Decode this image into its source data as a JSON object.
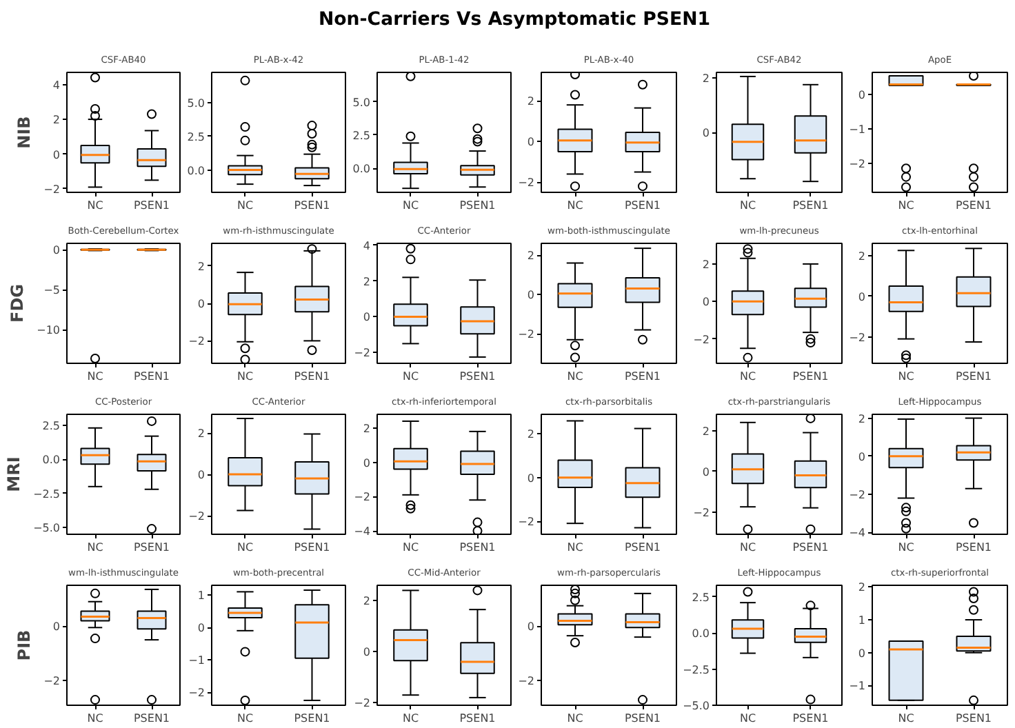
{
  "chart_data": [
    {
      "type": "other",
      "title": "Non-Carriers Vs Asymptomatic PSEN1"
    },
    {
      "type": "box",
      "title": "CSF-AB40",
      "ylabel": "NIB",
      "categories": [
        "NC",
        "PSEN1"
      ],
      "ylim": [
        -2.2,
        4.7
      ],
      "yticks": [
        -2,
        0,
        2,
        4
      ],
      "boxes": [
        {
          "low": -1.9,
          "q1": -0.5,
          "median": -0.05,
          "q3": 0.5,
          "high": 2.0,
          "outliers": [
            2.2,
            2.6,
            4.4
          ]
        },
        {
          "low": -1.5,
          "q1": -0.7,
          "median": -0.35,
          "q3": 0.3,
          "high": 1.35,
          "outliers": [
            2.3
          ]
        }
      ]
    },
    {
      "type": "box",
      "title": "PL-AB-x-42",
      "categories": [
        "NC",
        "PSEN1"
      ],
      "ylim": [
        -1.6,
        7.2
      ],
      "yticks": [
        {
          "value": 0,
          "label": "0.0"
        },
        {
          "value": 2.5,
          "label": "2.5"
        },
        {
          "value": 5,
          "label": "5.0"
        }
      ],
      "boxes": [
        {
          "low": -1.0,
          "q1": -0.3,
          "median": 0.05,
          "q3": 0.35,
          "high": 1.1,
          "outliers": [
            2.2,
            3.2,
            6.6
          ]
        },
        {
          "low": -1.1,
          "q1": -0.6,
          "median": -0.25,
          "q3": 0.2,
          "high": 1.2,
          "outliers": [
            1.7,
            1.9,
            2.7,
            3.3
          ]
        }
      ]
    },
    {
      "type": "box",
      "title": "PL-AB-1-42",
      "categories": [
        "NC",
        "PSEN1"
      ],
      "ylim": [
        -1.8,
        7.2
      ],
      "yticks": [
        {
          "value": 0,
          "label": "0.0"
        },
        {
          "value": 2.5,
          "label": "2.5"
        },
        {
          "value": 5,
          "label": "5.0"
        }
      ],
      "boxes": [
        {
          "low": -1.5,
          "q1": -0.4,
          "median": -0.05,
          "q3": 0.45,
          "high": 1.9,
          "outliers": [
            2.4,
            6.9
          ]
        },
        {
          "low": -1.4,
          "q1": -0.5,
          "median": -0.1,
          "q3": 0.2,
          "high": 1.3,
          "outliers": [
            2.0,
            2.2,
            3.0
          ]
        }
      ]
    },
    {
      "type": "box",
      "title": "PL-AB-x-40",
      "categories": [
        "NC",
        "PSEN1"
      ],
      "ylim": [
        -2.5,
        3.4
      ],
      "yticks": [
        -2,
        0,
        2
      ],
      "boxes": [
        {
          "low": -1.6,
          "q1": -0.5,
          "median": 0.05,
          "q3": 0.6,
          "high": 1.8,
          "outliers": [
            -2.2,
            2.3,
            3.3
          ]
        },
        {
          "low": -1.5,
          "q1": -0.5,
          "median": -0.05,
          "q3": 0.45,
          "high": 1.65,
          "outliers": [
            -2.2,
            2.8
          ]
        }
      ]
    },
    {
      "type": "box",
      "title": "CSF-AB42",
      "categories": [
        "NC",
        "PSEN1"
      ],
      "ylim": [
        -2.2,
        2.2
      ],
      "yticks": [
        0,
        2
      ],
      "boxes": [
        {
          "low": -1.7,
          "q1": -1.0,
          "median": -0.35,
          "q3": 0.3,
          "high": 2.05
        },
        {
          "low": -1.8,
          "q1": -0.75,
          "median": -0.3,
          "q3": 0.6,
          "high": 1.75
        }
      ]
    },
    {
      "type": "box",
      "title": "ApoE",
      "categories": [
        "NC",
        "PSEN1"
      ],
      "ylim": [
        -2.85,
        0.65
      ],
      "yticks": [
        -2,
        -1,
        0
      ],
      "boxes": [
        {
          "low": 0.27,
          "q1": 0.27,
          "median": 0.3,
          "q3": 0.55,
          "high": 0.55,
          "outliers": [
            -2.7,
            -2.4,
            -2.15
          ]
        },
        {
          "low": 0.27,
          "q1": 0.27,
          "median": 0.3,
          "q3": 0.3,
          "high": 0.3,
          "outliers": [
            -2.7,
            -2.4,
            -2.15,
            0.55
          ]
        }
      ]
    },
    {
      "type": "box",
      "title": "Both-Cerebellum-Cortex",
      "ylabel": "FDG",
      "categories": [
        "NC",
        "PSEN1"
      ],
      "ylim": [
        -14.2,
        0.8
      ],
      "yticks": [
        -10,
        -5,
        0
      ],
      "boxes": [
        {
          "low": -0.1,
          "q1": -0.05,
          "median": 0,
          "q3": 0.05,
          "high": 0.1,
          "outliers": [
            -13.6
          ]
        },
        {
          "low": -0.1,
          "q1": -0.05,
          "median": 0,
          "q3": 0.05,
          "high": 0.1
        }
      ]
    },
    {
      "type": "box",
      "title": "wm-rh-isthmuscingulate",
      "categories": [
        "NC",
        "PSEN1"
      ],
      "ylim": [
        -3.2,
        3.2
      ],
      "yticks": [
        -2,
        0,
        2
      ],
      "boxes": [
        {
          "low": -2.05,
          "q1": -0.6,
          "median": -0.05,
          "q3": 0.55,
          "high": 1.65,
          "outliers": [
            -2.4,
            -3.0
          ]
        },
        {
          "low": -2.0,
          "q1": -0.45,
          "median": 0.2,
          "q3": 0.9,
          "high": 2.8,
          "outliers": [
            -2.5,
            2.9
          ]
        }
      ]
    },
    {
      "type": "box",
      "title": "CC-Anterior",
      "categories": [
        "NC",
        "PSEN1"
      ],
      "ylim": [
        -2.6,
        4.1
      ],
      "yticks": [
        -2,
        0,
        2,
        4
      ],
      "boxes": [
        {
          "low": -1.5,
          "q1": -0.5,
          "median": 0.0,
          "q3": 0.7,
          "high": 2.2,
          "outliers": [
            3.2,
            3.8
          ]
        },
        {
          "low": -2.25,
          "q1": -0.95,
          "median": -0.25,
          "q3": 0.55,
          "high": 2.05
        }
      ]
    },
    {
      "type": "box",
      "title": "wm-both-isthmuscingulate",
      "categories": [
        "NC",
        "PSEN1"
      ],
      "ylim": [
        -3.5,
        2.6
      ],
      "yticks": [
        -2,
        0,
        2
      ],
      "boxes": [
        {
          "low": -2.3,
          "q1": -0.65,
          "median": 0.05,
          "q3": 0.55,
          "high": 1.6,
          "outliers": [
            -2.6,
            -3.2
          ]
        },
        {
          "low": -1.8,
          "q1": -0.4,
          "median": 0.3,
          "q3": 0.85,
          "high": 2.35,
          "outliers": [
            -2.3
          ]
        }
      ]
    },
    {
      "type": "box",
      "title": "wm-lh-precuneus",
      "categories": [
        "NC",
        "PSEN1"
      ],
      "ylim": [
        -3.3,
        3.1
      ],
      "yticks": [
        -2,
        0,
        2
      ],
      "boxes": [
        {
          "low": -2.5,
          "q1": -0.7,
          "median": 0.0,
          "q3": 0.55,
          "high": 2.3,
          "outliers": [
            -3.0,
            2.6,
            2.8
          ]
        },
        {
          "low": -1.65,
          "q1": -0.3,
          "median": 0.15,
          "q3": 0.7,
          "high": 2.0,
          "outliers": [
            -2.0,
            -2.2
          ]
        }
      ]
    },
    {
      "type": "box",
      "title": "ctx-lh-entorhinal",
      "categories": [
        "NC",
        "PSEN1"
      ],
      "ylim": [
        -3.3,
        2.6
      ],
      "yticks": [
        -2,
        0,
        2
      ],
      "boxes": [
        {
          "low": -2.1,
          "q1": -0.75,
          "median": -0.3,
          "q3": 0.5,
          "high": 2.25,
          "outliers": [
            -2.9,
            -3.05
          ]
        },
        {
          "low": -2.25,
          "q1": -0.5,
          "median": 0.15,
          "q3": 0.95,
          "high": 2.35
        }
      ]
    },
    {
      "type": "box",
      "title": "CC-Posterior",
      "ylabel": "MRI",
      "categories": [
        "NC",
        "PSEN1"
      ],
      "ylim": [
        -5.5,
        3.3
      ],
      "yticks": [
        {
          "value": -5,
          "label": "−5.0"
        },
        {
          "value": -2.5,
          "label": "−2.5"
        },
        {
          "value": 0,
          "label": "0.0"
        },
        {
          "value": 2.5,
          "label": "2.5"
        }
      ],
      "boxes": [
        {
          "low": -2.0,
          "q1": -0.35,
          "median": 0.3,
          "q3": 0.8,
          "high": 2.3
        },
        {
          "low": -2.2,
          "q1": -0.85,
          "median": -0.15,
          "q3": 0.35,
          "high": 1.7,
          "outliers": [
            -5.1,
            2.8
          ]
        }
      ]
    },
    {
      "type": "box",
      "title": "CC-Anterior",
      "categories": [
        "NC",
        "PSEN1"
      ],
      "ylim": [
        -2.9,
        2.9
      ],
      "yticks": [
        -2,
        0,
        2
      ],
      "boxes": [
        {
          "low": -1.75,
          "q1": -0.55,
          "median": 0.0,
          "q3": 0.8,
          "high": 2.7
        },
        {
          "low": -2.65,
          "q1": -0.95,
          "median": -0.2,
          "q3": 0.6,
          "high": 1.95
        }
      ]
    },
    {
      "type": "box",
      "title": "ctx-rh-inferiortemporal",
      "categories": [
        "NC",
        "PSEN1"
      ],
      "ylim": [
        -4.2,
        2.8
      ],
      "yticks": [
        -4,
        -2,
        0,
        2
      ],
      "boxes": [
        {
          "low": -1.9,
          "q1": -0.4,
          "median": 0.05,
          "q3": 0.8,
          "high": 2.4,
          "outliers": [
            -2.5,
            -2.7
          ]
        },
        {
          "low": -2.2,
          "q1": -0.7,
          "median": -0.1,
          "q3": 0.65,
          "high": 1.8,
          "outliers": [
            -3.5,
            -4.0
          ]
        }
      ]
    },
    {
      "type": "box",
      "title": "ctx-rh-parsorbitalis",
      "categories": [
        "NC",
        "PSEN1"
      ],
      "ylim": [
        -2.6,
        2.9
      ],
      "yticks": [
        -2,
        0,
        2
      ],
      "boxes": [
        {
          "low": -2.1,
          "q1": -0.45,
          "median": 0.0,
          "q3": 0.8,
          "high": 2.6
        },
        {
          "low": -2.3,
          "q1": -0.9,
          "median": -0.25,
          "q3": 0.45,
          "high": 2.25
        }
      ]
    },
    {
      "type": "box",
      "title": "ctx-rh-parstriangularis",
      "categories": [
        "NC",
        "PSEN1"
      ],
      "ylim": [
        -3.1,
        2.8
      ],
      "yticks": [
        -2,
        0,
        2
      ],
      "boxes": [
        {
          "low": -1.75,
          "q1": -0.6,
          "median": 0.1,
          "q3": 0.85,
          "high": 2.4,
          "outliers": [
            -2.85
          ]
        },
        {
          "low": -1.8,
          "q1": -0.8,
          "median": -0.2,
          "q3": 0.5,
          "high": 1.9,
          "outliers": [
            -2.85,
            2.6
          ]
        }
      ]
    },
    {
      "type": "box",
      "title": "Left-Hippocampus",
      "categories": [
        "NC",
        "PSEN1"
      ],
      "ylim": [
        -4.1,
        2.2
      ],
      "yticks": [
        -4,
        -2,
        0,
        2
      ],
      "boxes": [
        {
          "low": -2.2,
          "q1": -0.6,
          "median": 0.0,
          "q3": 0.4,
          "high": 1.95,
          "outliers": [
            -2.7,
            -2.9,
            -3.5,
            -3.8
          ]
        },
        {
          "low": -1.7,
          "q1": -0.2,
          "median": 0.2,
          "q3": 0.55,
          "high": 2.0,
          "outliers": [
            -3.5
          ]
        }
      ]
    },
    {
      "type": "box",
      "title": "wm-lh-isthmuscingulate",
      "ylabel": "PIB",
      "categories": [
        "NC",
        "PSEN1"
      ],
      "ylim": [
        -2.9,
        1.5
      ],
      "yticks": [
        -2,
        0
      ],
      "boxes": [
        {
          "low": -0.05,
          "q1": 0.2,
          "median": 0.35,
          "q3": 0.55,
          "high": 0.9,
          "outliers": [
            -2.7,
            -0.45,
            1.2
          ]
        },
        {
          "low": -0.5,
          "q1": -0.1,
          "median": 0.3,
          "q3": 0.55,
          "high": 1.35,
          "outliers": [
            -2.7
          ]
        }
      ]
    },
    {
      "type": "box",
      "title": "wm-both-precentral",
      "categories": [
        "NC",
        "PSEN1"
      ],
      "ylim": [
        -2.4,
        1.3
      ],
      "yticks": [
        -2,
        -1,
        0,
        1
      ],
      "boxes": [
        {
          "low": -0.1,
          "q1": 0.3,
          "median": 0.45,
          "q3": 0.6,
          "high": 1.1,
          "outliers": [
            -0.75,
            -2.25
          ]
        },
        {
          "low": -2.25,
          "q1": -0.95,
          "median": 0.15,
          "q3": 0.7,
          "high": 1.15
        }
      ]
    },
    {
      "type": "box",
      "title": "CC-Mid-Anterior",
      "categories": [
        "NC",
        "PSEN1"
      ],
      "ylim": [
        -2.1,
        2.6
      ],
      "yticks": [
        -2,
        0,
        2
      ],
      "boxes": [
        {
          "low": -1.7,
          "q1": -0.35,
          "median": 0.45,
          "q3": 0.85,
          "high": 2.4
        },
        {
          "low": -1.8,
          "q1": -0.85,
          "median": -0.4,
          "q3": 0.35,
          "high": 1.65,
          "outliers": [
            2.4
          ]
        }
      ]
    },
    {
      "type": "box",
      "title": "wm-rh-parsopercularis",
      "categories": [
        "NC",
        "PSEN1"
      ],
      "ylim": [
        -2.9,
        1.5
      ],
      "yticks": [
        -2,
        0
      ],
      "boxes": [
        {
          "low": -0.35,
          "q1": 0.05,
          "median": 0.2,
          "q3": 0.45,
          "high": 0.75,
          "outliers": [
            -0.6,
            0.95,
            1.2,
            1.35
          ]
        },
        {
          "low": -0.4,
          "q1": -0.05,
          "median": 0.15,
          "q3": 0.45,
          "high": 1.2,
          "outliers": [
            -2.7
          ]
        }
      ]
    },
    {
      "type": "box",
      "title": "Left-Hippocampus",
      "categories": [
        "NC",
        "PSEN1"
      ],
      "ylim": [
        -5.0,
        3.3
      ],
      "yticks": [
        {
          "value": -5,
          "label": "−5.0"
        },
        {
          "value": -2.5,
          "label": "−2.5"
        },
        {
          "value": 0,
          "label": "0.0"
        },
        {
          "value": 2.5,
          "label": "2.5"
        }
      ],
      "boxes": [
        {
          "low": -1.4,
          "q1": -0.35,
          "median": 0.3,
          "q3": 0.9,
          "high": 2.1,
          "outliers": [
            2.85
          ]
        },
        {
          "low": -1.7,
          "q1": -0.65,
          "median": -0.25,
          "q3": 0.3,
          "high": 1.7,
          "outliers": [
            -4.6,
            1.9
          ]
        }
      ]
    },
    {
      "type": "box",
      "title": "ctx-rh-superiorfrontal",
      "categories": [
        "NC",
        "PSEN1"
      ],
      "ylim": [
        -1.6,
        2.05
      ],
      "yticks": [
        -1,
        0,
        1,
        2
      ],
      "boxes": [
        {
          "low": -1.45,
          "q1": -1.45,
          "median": 0.1,
          "q3": 0.35,
          "high": 0.35
        },
        {
          "low": 0.0,
          "q1": 0.05,
          "median": 0.15,
          "q3": 0.5,
          "high": 1.0,
          "outliers": [
            -1.45,
            1.3,
            1.65,
            1.85
          ]
        }
      ]
    }
  ]
}
